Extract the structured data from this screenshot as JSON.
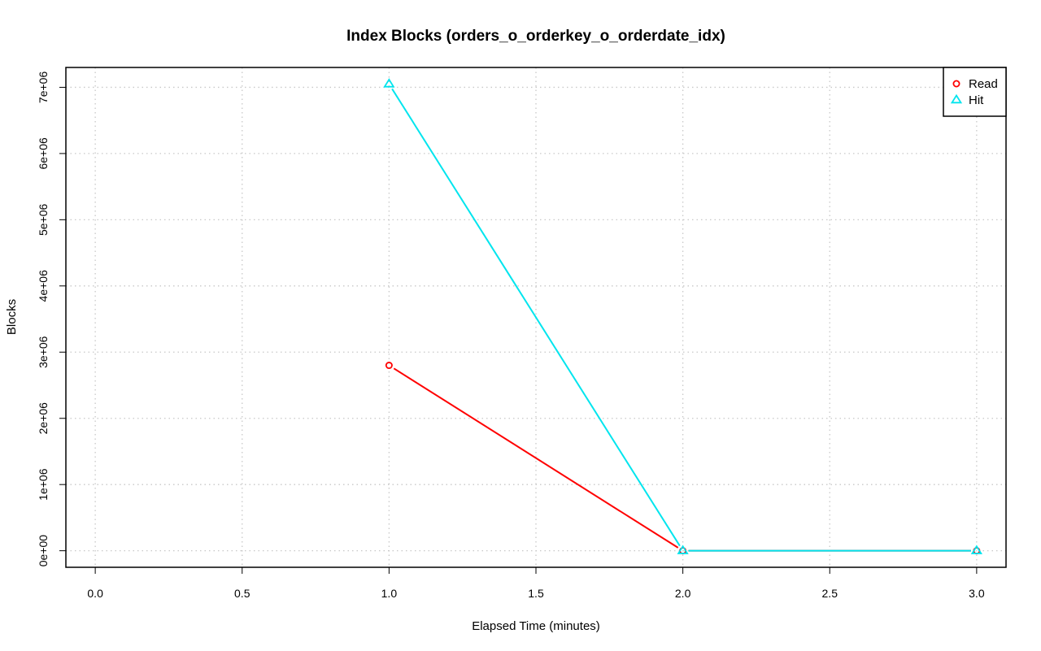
{
  "chart_data": {
    "type": "line",
    "title": "Index Blocks (orders_o_orderkey_o_orderdate_idx)",
    "xlabel": "Elapsed Time (minutes)",
    "ylabel": "Blocks",
    "xlim": [
      -0.1,
      3.1
    ],
    "ylim": [
      -250000,
      7300000
    ],
    "x_ticks": [
      0.0,
      0.5,
      1.0,
      1.5,
      2.0,
      2.5,
      3.0
    ],
    "x_tick_labels": [
      "0.0",
      "0.5",
      "1.0",
      "1.5",
      "2.0",
      "2.5",
      "3.0"
    ],
    "y_ticks": [
      0,
      1000000,
      2000000,
      3000000,
      4000000,
      5000000,
      6000000,
      7000000
    ],
    "y_tick_labels": [
      "0e+00",
      "1e+06",
      "2e+06",
      "3e+06",
      "4e+06",
      "5e+06",
      "6e+06",
      "7e+06"
    ],
    "grid": true,
    "legend_position": "top-right",
    "series": [
      {
        "name": "Read",
        "color": "#ff0000",
        "marker": "circle",
        "x": [
          1,
          2,
          3
        ],
        "y": [
          2800000,
          0,
          0
        ]
      },
      {
        "name": "Hit",
        "color": "#00e5ee",
        "marker": "triangle",
        "x": [
          1,
          2,
          3
        ],
        "y": [
          7050000,
          0,
          0
        ]
      }
    ]
  }
}
